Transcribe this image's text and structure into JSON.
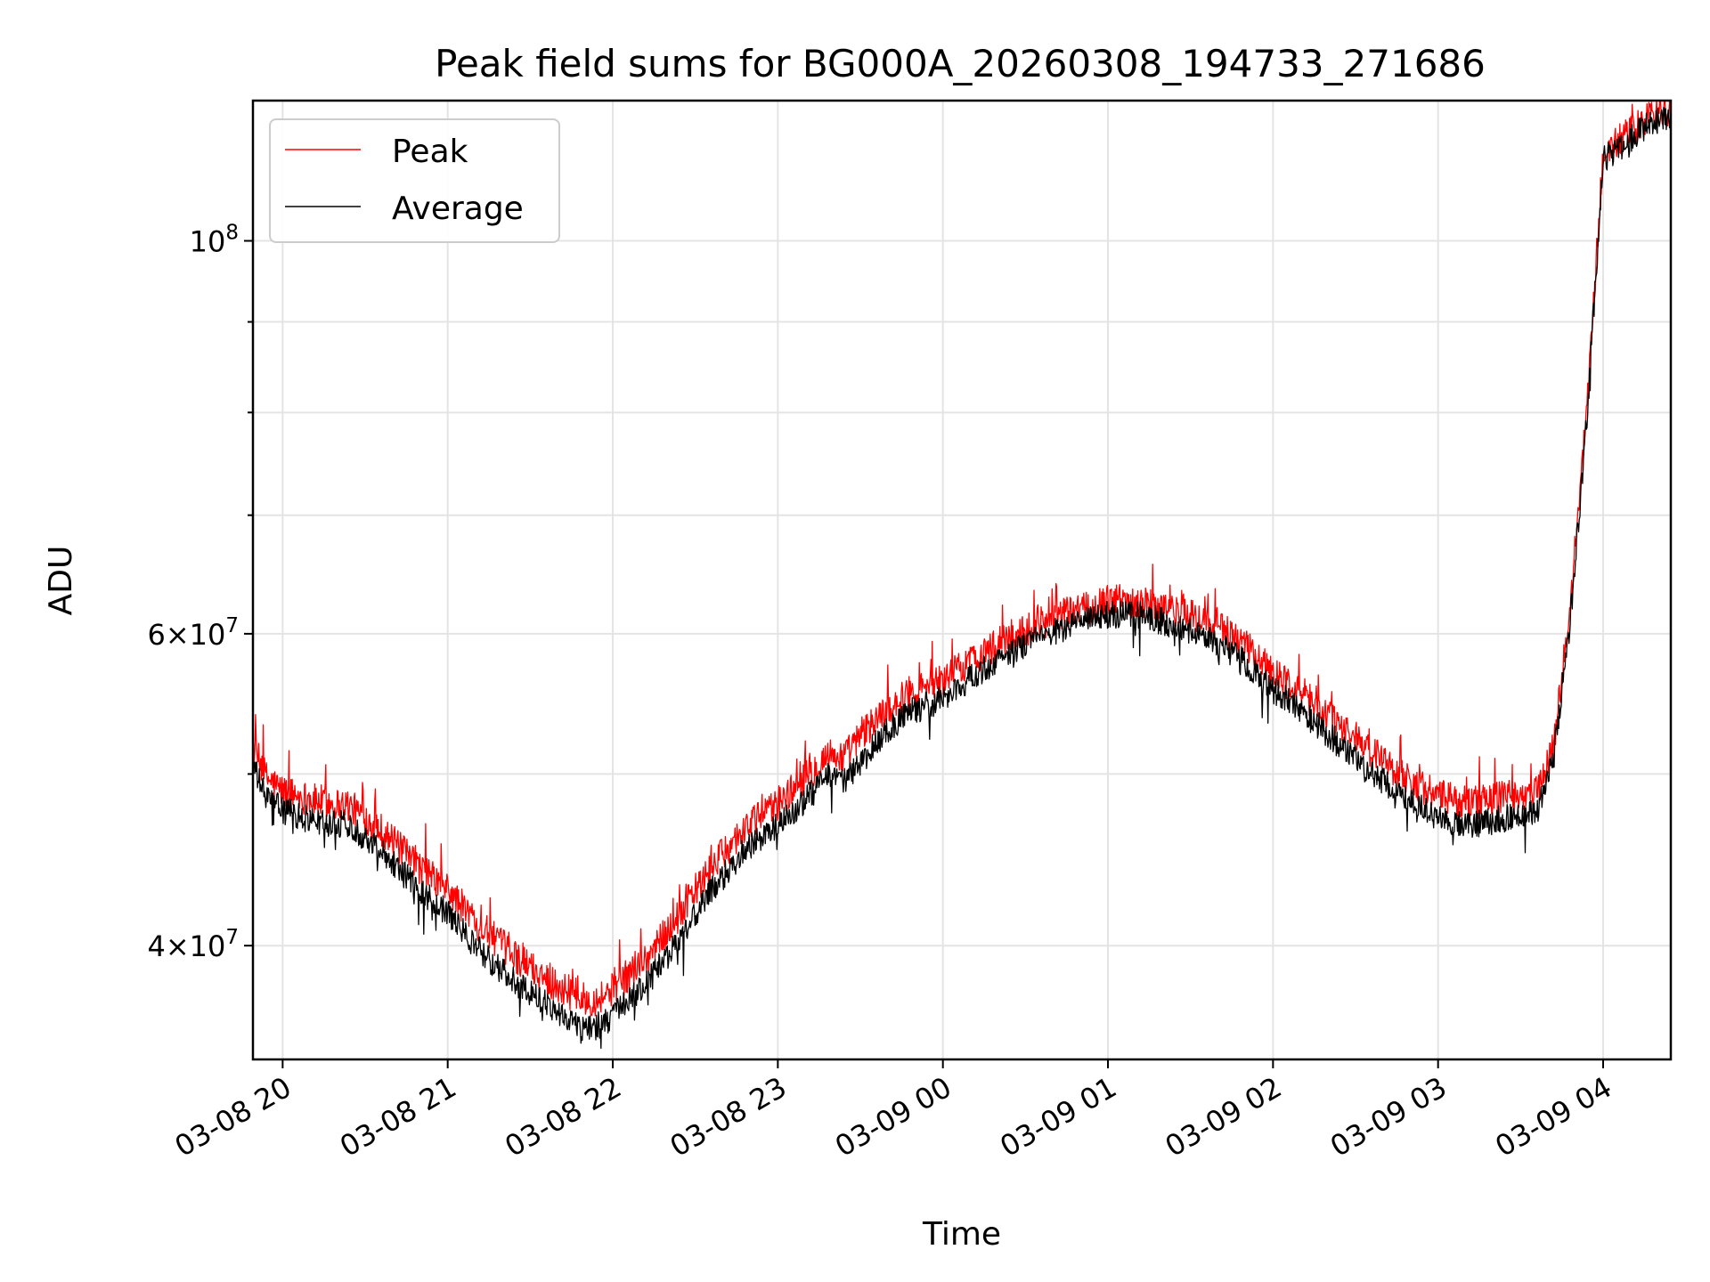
{
  "chart_data": {
    "type": "line",
    "title": "Peak field sums for BG000A_20260308_194733_271686",
    "xlabel": "Time",
    "ylabel": "ADU",
    "yscale": "log",
    "ylim": [
      34500000,
      120000000
    ],
    "xlim_hours": [
      19.82,
      28.41
    ],
    "grid": true,
    "legend_position": "upper left",
    "x_ticks": [
      {
        "hour": 20,
        "label": "03-08 20"
      },
      {
        "hour": 21,
        "label": "03-08 21"
      },
      {
        "hour": 22,
        "label": "03-08 22"
      },
      {
        "hour": 23,
        "label": "03-08 23"
      },
      {
        "hour": 24,
        "label": "03-09 00"
      },
      {
        "hour": 25,
        "label": "03-09 01"
      },
      {
        "hour": 26,
        "label": "03-09 02"
      },
      {
        "hour": 27,
        "label": "03-09 03"
      },
      {
        "hour": 28,
        "label": "03-09 04"
      }
    ],
    "y_major_ticks": [
      {
        "value": 40000000,
        "base": "4×10",
        "exp": "7"
      },
      {
        "value": 60000000,
        "base": "6×10",
        "exp": "7"
      },
      {
        "value": 100000000,
        "base": "10",
        "exp": "8"
      }
    ],
    "y_minor_gridlines": [
      50000000,
      70000000,
      80000000,
      90000000
    ],
    "series": [
      {
        "name": "Peak",
        "color": "#ff0000",
        "noise_amplitude": 0.022,
        "x": [
          19.82,
          19.9,
          20.0,
          20.2,
          20.4,
          20.6,
          20.8,
          21.0,
          21.2,
          21.4,
          21.6,
          21.8,
          21.9,
          22.0,
          22.2,
          22.4,
          22.6,
          22.8,
          23.0,
          23.2,
          23.3,
          23.4,
          23.6,
          23.8,
          24.0,
          24.2,
          24.4,
          24.6,
          24.8,
          25.0,
          25.2,
          25.4,
          25.6,
          25.8,
          26.0,
          26.2,
          26.4,
          26.6,
          26.8,
          27.0,
          27.2,
          27.4,
          27.6,
          27.7,
          27.8,
          27.9,
          28.0,
          28.1,
          28.2,
          28.3,
          28.41
        ],
        "values": [
          51800000,
          49800000,
          48900000,
          48300000,
          48000000,
          46500000,
          44500000,
          43000000,
          41000000,
          39500000,
          38300000,
          37300000,
          37300000,
          37800000,
          39300000,
          41600000,
          44300000,
          46600000,
          48100000,
          50100000,
          51300000,
          51100000,
          53800000,
          55600000,
          56500000,
          58200000,
          59700000,
          60900000,
          61800000,
          62600000,
          62600000,
          61800000,
          61100000,
          59400000,
          57100000,
          55300000,
          53300000,
          51400000,
          49800000,
          48600000,
          48100000,
          48600000,
          48800000,
          52000000,
          62000000,
          80000000,
          112000000,
          114000000,
          115700000,
          118000000,
          117900000
        ]
      },
      {
        "name": "Average",
        "color": "#000000",
        "noise_amplitude": 0.018,
        "x": [
          19.82,
          19.9,
          20.0,
          20.2,
          20.4,
          20.6,
          20.8,
          21.0,
          21.2,
          21.4,
          21.6,
          21.8,
          21.9,
          22.0,
          22.2,
          22.4,
          22.6,
          22.8,
          23.0,
          23.2,
          23.3,
          23.4,
          23.6,
          23.8,
          24.0,
          24.2,
          24.4,
          24.6,
          24.8,
          25.0,
          25.2,
          25.4,
          25.6,
          25.8,
          26.0,
          26.2,
          26.4,
          26.6,
          26.8,
          27.0,
          27.2,
          27.4,
          27.6,
          27.7,
          27.8,
          27.9,
          28.0,
          28.1,
          28.2,
          28.3,
          28.41
        ],
        "values": [
          50500000,
          48500000,
          47700000,
          47000000,
          46800000,
          45300000,
          43300000,
          41700000,
          39700000,
          38200000,
          37100000,
          36000000,
          36000000,
          36500000,
          38000000,
          40300000,
          43000000,
          45300000,
          46700000,
          48700000,
          49800000,
          49500000,
          52200000,
          54200000,
          55100000,
          56900000,
          58500000,
          59800000,
          60700000,
          61500000,
          61500000,
          60700000,
          59900000,
          58100000,
          55800000,
          54000000,
          52000000,
          50100000,
          48500000,
          47200000,
          46800000,
          47200000,
          47500000,
          51000000,
          61000000,
          79000000,
          111000000,
          113000000,
          114800000,
          117000000,
          117000000
        ]
      }
    ]
  }
}
